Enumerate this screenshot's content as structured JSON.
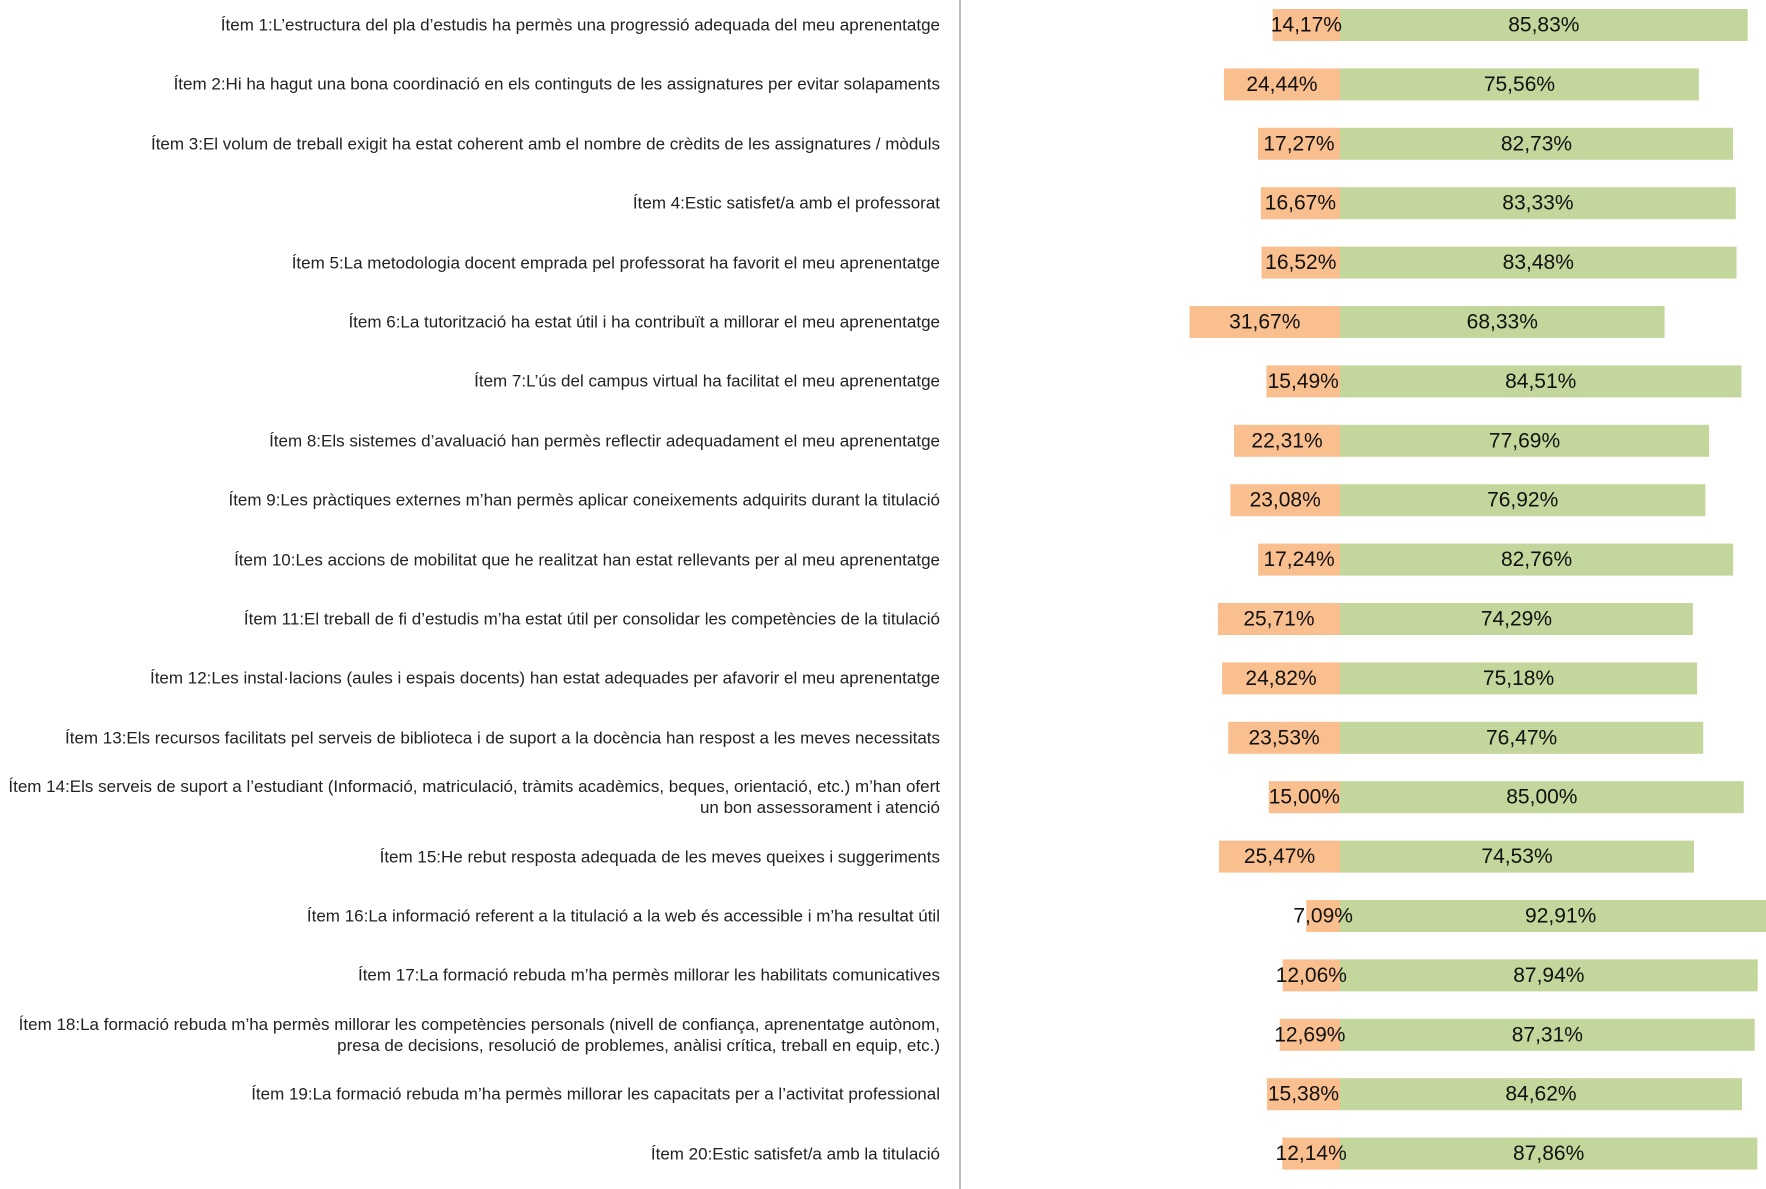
{
  "chart_data": {
    "type": "diverging-bar",
    "categories": [
      "Ítem 1:L’estructura del pla d’estudis ha permès una progressió adequada del meu aprenentatge",
      "Ítem 2:Hi ha hagut una bona coordinació en els continguts de les assignatures per evitar solapaments",
      "Ítem 3:El volum de treball exigit ha estat coherent amb el nombre de crèdits de les assignatures / mòduls",
      "Ítem 4:Estic satisfet/a amb el professorat",
      "Ítem 5:La metodologia docent emprada pel professorat ha favorit el meu aprenentatge",
      "Ítem 6:La tutorització ha estat útil i ha contribuït a millorar el meu aprenentatge",
      "Ítem 7:L’ús del campus virtual ha facilitat el meu aprenentatge",
      "Ítem 8:Els sistemes d’avaluació han permès reflectir adequadament el meu aprenentatge",
      "Ítem 9:Les pràctiques externes m’han permès aplicar coneixements adquirits durant la titulació",
      "Ítem 10:Les accions de mobilitat que he realitzat han estat rellevants per al meu aprenentatge",
      "Ítem 11:El treball de fi d’estudis m’ha estat útil per consolidar les competències de la titulació",
      "Ítem 12:Les instal·lacions (aules i espais docents) han estat adequades per afavorir el meu aprenentatge",
      "Ítem 13:Els recursos facilitats pel serveis de biblioteca i de suport a la docència han respost a les meves necessitats",
      "Ítem 14:Els serveis de suport a l’estudiant (Informació, matriculació, tràmits acadèmics, beques, orientació, etc.) m’han ofert un bon assessorament i atenció",
      "Ítem 15:He rebut resposta adequada de les meves queixes i suggeriments",
      "Ítem 16:La informació referent a la titulació a la web és accessible i m’ha resultat útil",
      "Ítem 17:La formació rebuda m’ha permès millorar les habilitats comunicatives",
      "Ítem 18:La formació rebuda m’ha permès millorar les competències personals (nivell de confiança, aprenentatge autònom, presa de decisions, resolució de problemes, anàlisi crítica, treball en equip, etc.)",
      "Ítem 19:La formació rebuda m’ha permès millorar les capacitats per a l’activitat professional",
      "Ítem 20:Estic satisfet/a amb la titulació"
    ],
    "series": [
      {
        "color": "#f9bf8f",
        "values": [
          14.17,
          24.44,
          17.27,
          16.67,
          16.52,
          31.67,
          15.49,
          22.31,
          23.08,
          17.24,
          25.71,
          24.82,
          23.53,
          15.0,
          25.47,
          7.09,
          12.06,
          12.69,
          15.38,
          12.14
        ],
        "value_labels": [
          "14,17%",
          "24,44%",
          "17,27%",
          "16,67%",
          "16,52%",
          "31,67%",
          "15,49%",
          "22,31%",
          "23,08%",
          "17,24%",
          "25,71%",
          "24,82%",
          "23,53%",
          "15,00%",
          "25,47%",
          "7,09%",
          "12,06%",
          "12,69%",
          "15,38%",
          "12,14%"
        ]
      },
      {
        "color": "#c3d69b",
        "values": [
          85.83,
          75.56,
          82.73,
          83.33,
          83.48,
          68.33,
          84.51,
          77.69,
          76.92,
          82.76,
          74.29,
          75.18,
          76.47,
          85.0,
          74.53,
          92.91,
          87.94,
          87.31,
          84.62,
          87.86
        ],
        "value_labels": [
          "85,83%",
          "75,56%",
          "82,73%",
          "83,33%",
          "83,48%",
          "68,33%",
          "84,51%",
          "77,69%",
          "76,92%",
          "82,76%",
          "74,29%",
          "75,18%",
          "76,47%",
          "85,00%",
          "74,53%",
          "92,91%",
          "87,94%",
          "87,31%",
          "84,62%",
          "87,86%"
        ]
      }
    ]
  }
}
